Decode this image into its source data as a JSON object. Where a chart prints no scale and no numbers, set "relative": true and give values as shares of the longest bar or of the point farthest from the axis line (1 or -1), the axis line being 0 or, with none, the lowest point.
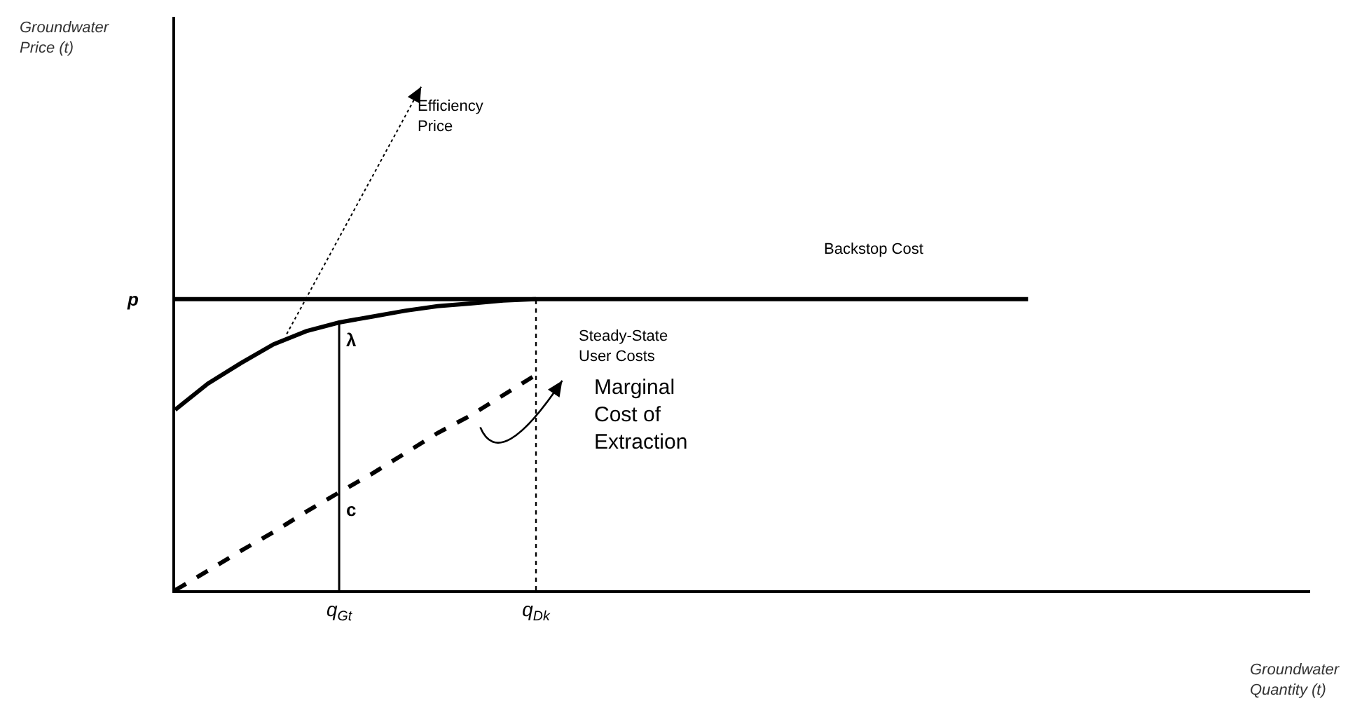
{
  "chart_data": {
    "type": "line",
    "relative": true,
    "categories": [
      null,
      null,
      null,
      null,
      null,
      "q$_{Gt}$",
      null,
      null,
      null,
      null,
      null,
      "q$_{Dk}$",
      null,
      null,
      null,
      null,
      null,
      null,
      null,
      null,
      null,
      null,
      null,
      null,
      null,
      null,
      null,
      null,
      null,
      null,
      null,
      null,
      null,
      null,
      null
    ],
    "series": [
      {
        "color": "#000000",
        "line_style": "solid",
        "values": [
          0.62,
          0.71,
          0.78,
          0.845,
          0.89,
          0.92,
          0.94,
          0.96,
          0.976,
          0.985,
          0.995,
          1,
          null,
          null,
          null,
          null,
          null,
          null,
          null,
          null,
          null,
          null,
          null,
          null,
          null,
          null,
          null,
          null,
          null,
          null,
          null,
          null,
          null,
          null,
          null
        ]
      },
      {
        "color": "#000000",
        "line_style": "dashed",
        "values": [
          0,
          0.067,
          0.135,
          0.2,
          0.27,
          0.336,
          0.4,
          0.47,
          0.54,
          0.6,
          0.67,
          0.74,
          null,
          null,
          null,
          null,
          null,
          null,
          null,
          null,
          null,
          null,
          null,
          null,
          null,
          null,
          null,
          null,
          null,
          null,
          null,
          null,
          null,
          null,
          null
        ]
      },
      {
        "color": "#000000",
        "line_style": "solid",
        "values": [
          1,
          1,
          1,
          1,
          1,
          1,
          1,
          1,
          1,
          1,
          1,
          1,
          1,
          1,
          1,
          1,
          1,
          1,
          1,
          1,
          1,
          1,
          1,
          1,
          1,
          1,
          1,
          null,
          null,
          null,
          null,
          null,
          null,
          null,
          null
        ]
      }
    ],
    "ref_lines": [
      {
        "axis": "x",
        "value": "q$_{Gt}$",
        "line_style": "solid",
        "color": "#000000"
      },
      {
        "axis": "x",
        "value": "q$_{Dk}$",
        "line_style": "dotted",
        "color": "#000000"
      }
    ],
    "annotations": [
      "p",
      {
        "text": "λ",
        "x": "q$_{Gt}$",
        "y": 0.92
      },
      {
        "text": "c",
        "x": "q$_{Gt}$",
        "y": 0.336
      },
      "Efficiency Price",
      "Backstop Cost",
      "Steady-State User Costs",
      "Marginal Cost of Extraction",
      "Groundwater Price (t)",
      "Groundwater Quantity (t)"
    ],
    "grid": false,
    "marker": "none"
  }
}
